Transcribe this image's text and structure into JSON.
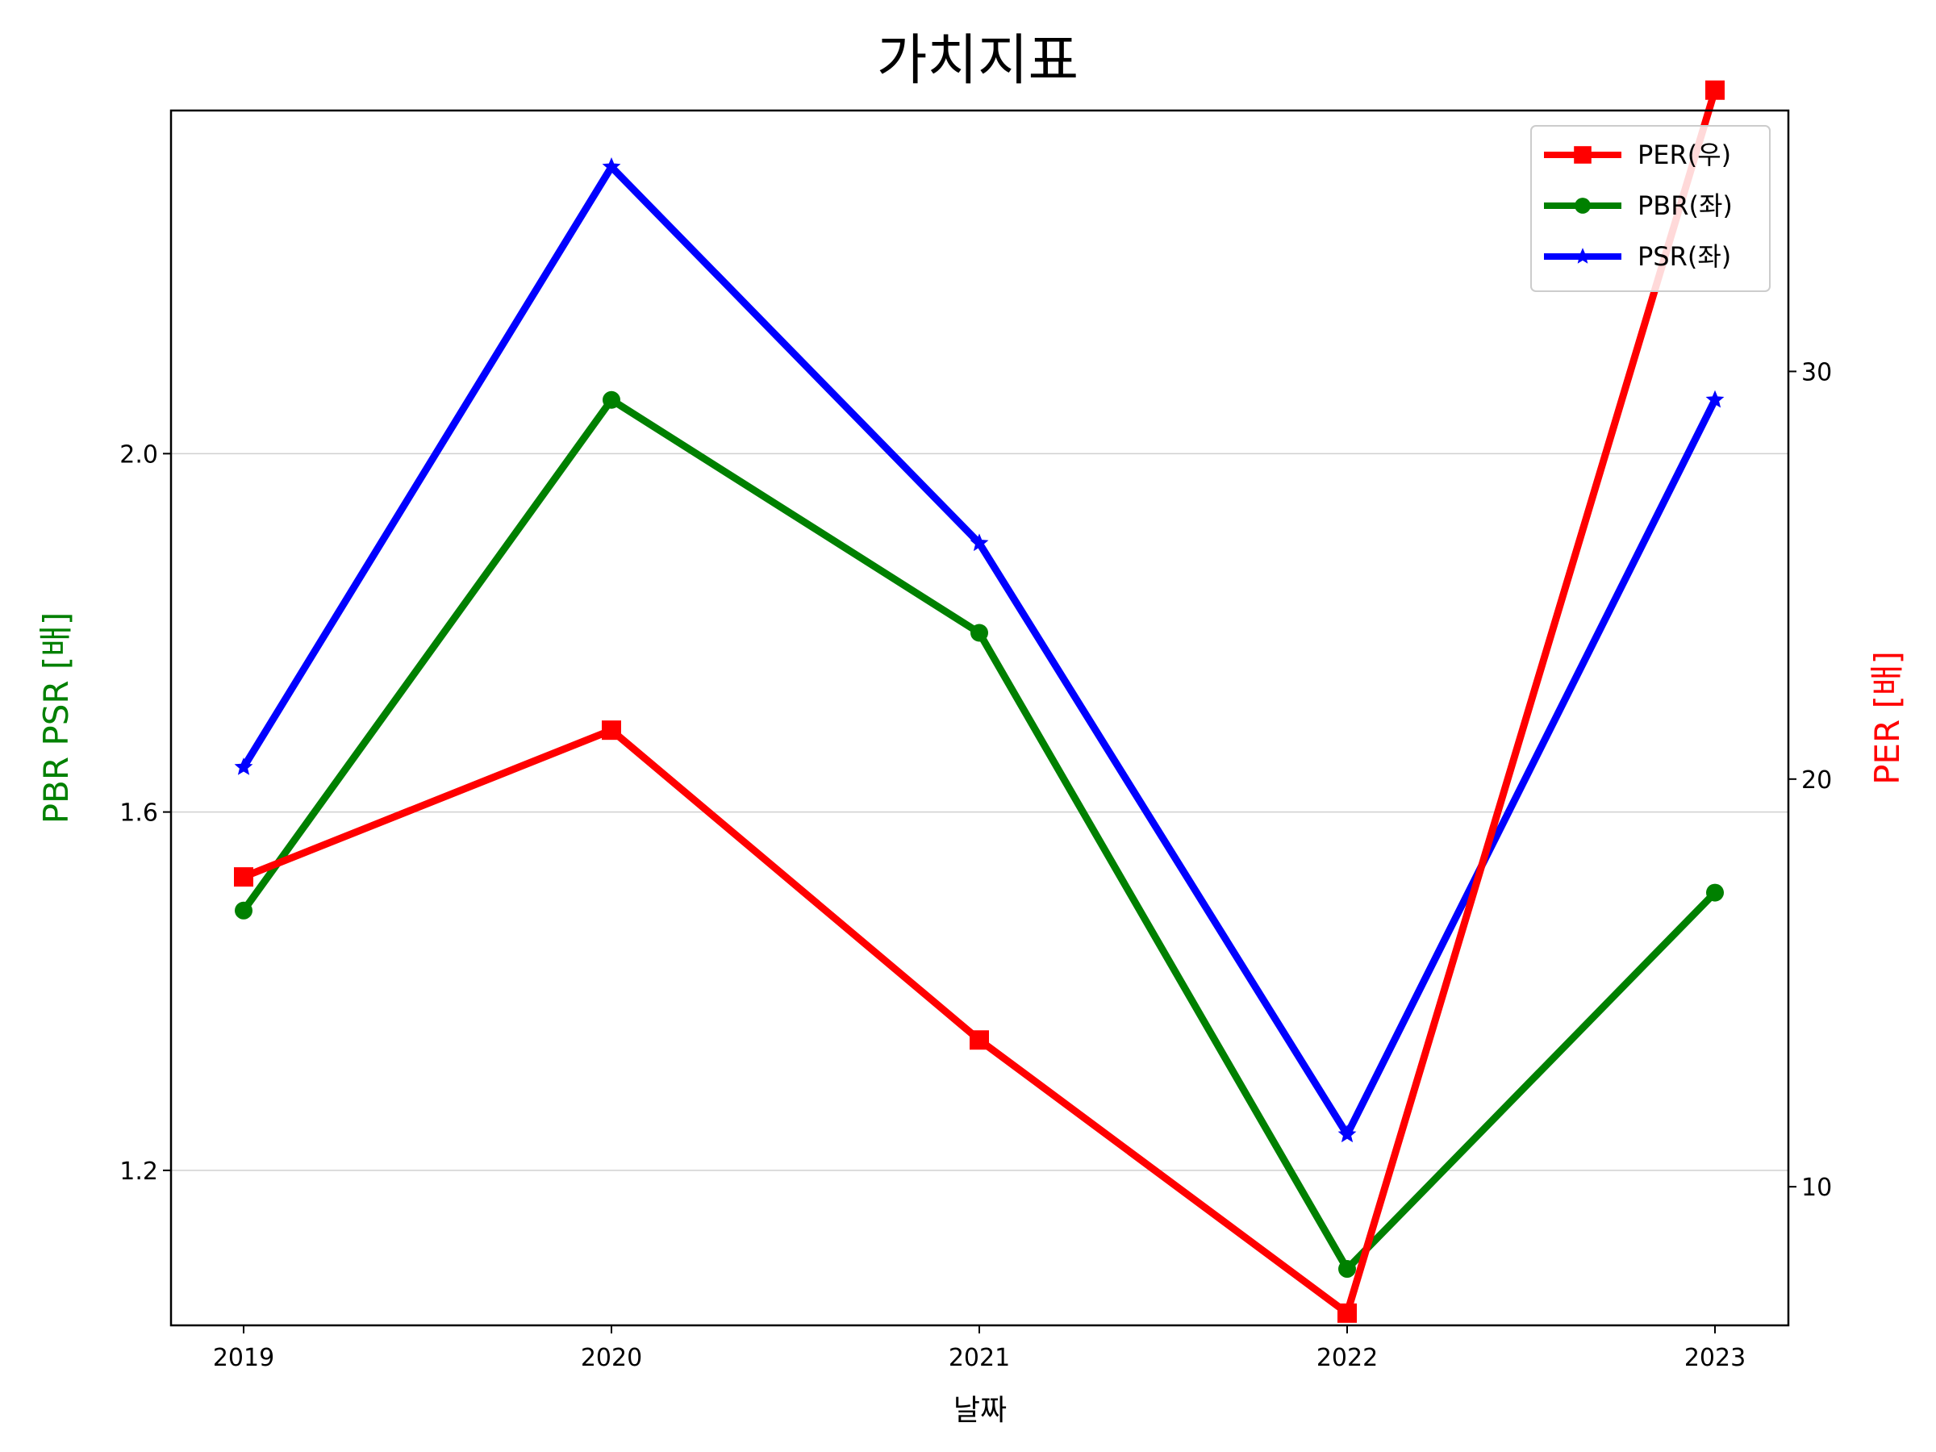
{
  "chart_data": {
    "type": "line",
    "title": "가치지표",
    "xlabel": "날짜",
    "ylabel_left": "PBR PSR [배]",
    "ylabel_right": "PER [배]",
    "categories": [
      "2019",
      "2020",
      "2021",
      "2022",
      "2023"
    ],
    "left_axis": {
      "ylim": [
        1.027,
        2.383
      ],
      "ticks": [
        1.2,
        1.6,
        2.0
      ],
      "tick_labels": [
        "1.2",
        "1.6",
        "2.0"
      ]
    },
    "right_axis": {
      "ylim": [
        6.6,
        36.4
      ],
      "ticks": [
        10,
        20,
        30
      ],
      "tick_labels": [
        "10",
        "20",
        "30"
      ]
    },
    "grid": "horizontal",
    "legend_position": "top-right",
    "series": [
      {
        "name": "PER(우)",
        "axis": "right",
        "color": "#ff0000",
        "marker": "square",
        "values": [
          17.6,
          21.2,
          13.6,
          6.9,
          36.9
        ]
      },
      {
        "name": "PBR(좌)",
        "axis": "left",
        "color": "#008000",
        "marker": "circle",
        "values": [
          1.49,
          2.06,
          1.8,
          1.09,
          1.51
        ]
      },
      {
        "name": "PSR(좌)",
        "axis": "left",
        "color": "#0000ff",
        "marker": "star",
        "values": [
          1.65,
          2.32,
          1.9,
          1.24,
          2.06
        ]
      }
    ]
  }
}
